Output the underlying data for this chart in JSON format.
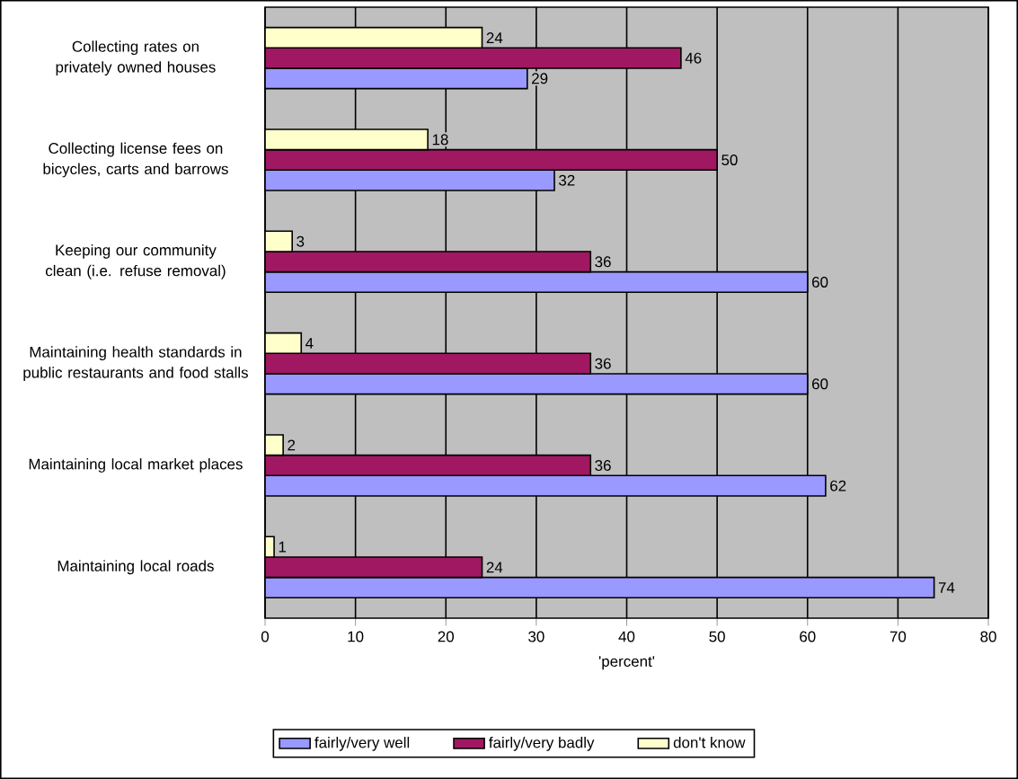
{
  "chart_data": {
    "type": "bar",
    "orientation": "horizontal",
    "xlabel": "'percent'",
    "categories": [
      "Collecting rates on privately owned houses",
      "Collecting license fees on bicycles, carts and barrows",
      "Keeping our community clean (i.e. refuse removal)",
      "Maintaining health standards in public restaurants and food stalls",
      "Maintaining local market places",
      "Maintaining local roads"
    ],
    "series": [
      {
        "name": "fairly/very well",
        "color": "#9999ff",
        "values": [
          29,
          32,
          60,
          60,
          62,
          74
        ]
      },
      {
        "name": "fairly/very badly",
        "color": "#a11862",
        "values": [
          46,
          50,
          36,
          36,
          36,
          24
        ]
      },
      {
        "name": "don't know",
        "color": "#ffffcc",
        "values": [
          24,
          18,
          3,
          4,
          2,
          1
        ]
      }
    ],
    "xlim": [
      0,
      80
    ],
    "xticks": [
      0,
      10,
      20,
      30,
      40,
      50,
      60,
      70,
      80
    ],
    "grid": "x",
    "legend": "bottom",
    "data_labels": true
  }
}
